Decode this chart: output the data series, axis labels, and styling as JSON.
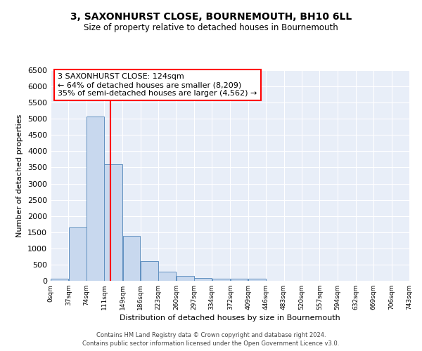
{
  "title": "3, SAXONHURST CLOSE, BOURNEMOUTH, BH10 6LL",
  "subtitle": "Size of property relative to detached houses in Bournemouth",
  "xlabel": "Distribution of detached houses by size in Bournemouth",
  "ylabel": "Number of detached properties",
  "bar_edges": [
    0,
    37,
    74,
    111,
    149,
    186,
    223,
    260,
    297,
    334,
    372,
    409,
    446,
    483,
    520,
    557,
    594,
    632,
    669,
    706,
    743
  ],
  "bar_heights": [
    75,
    1650,
    5060,
    3590,
    1390,
    600,
    290,
    150,
    80,
    60,
    55,
    60,
    0,
    0,
    0,
    0,
    0,
    0,
    0,
    0
  ],
  "bar_color": "#c8d8ee",
  "bar_edge_color": "#6090c0",
  "property_line_x": 124,
  "property_line_color": "red",
  "annotation_line1": "3 SAXONHURST CLOSE: 124sqm",
  "annotation_line2": "← 64% of detached houses are smaller (8,209)",
  "annotation_line3": "35% of semi-detached houses are larger (4,562) →",
  "annotation_box_color": "white",
  "annotation_box_edge_color": "red",
  "ylim": [
    0,
    6500
  ],
  "xlim": [
    0,
    743
  ],
  "tick_labels": [
    "0sqm",
    "37sqm",
    "74sqm",
    "111sqm",
    "149sqm",
    "186sqm",
    "223sqm",
    "260sqm",
    "297sqm",
    "334sqm",
    "372sqm",
    "409sqm",
    "446sqm",
    "483sqm",
    "520sqm",
    "557sqm",
    "594sqm",
    "632sqm",
    "669sqm",
    "706sqm",
    "743sqm"
  ],
  "yticks": [
    0,
    500,
    1000,
    1500,
    2000,
    2500,
    3000,
    3500,
    4000,
    4500,
    5000,
    5500,
    6000,
    6500
  ],
  "background_color": "#e8eef8",
  "grid_color": "#ffffff",
  "footer_line1": "Contains HM Land Registry data © Crown copyright and database right 2024.",
  "footer_line2": "Contains public sector information licensed under the Open Government Licence v3.0."
}
